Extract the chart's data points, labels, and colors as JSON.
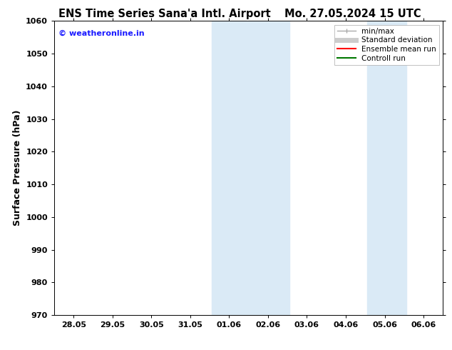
{
  "title_left": "ENS Time Series Sana'a Intl. Airport",
  "title_right": "Mo. 27.05.2024 15 UTC",
  "ylabel": "Surface Pressure (hPa)",
  "ylim": [
    970,
    1060
  ],
  "yticks": [
    970,
    980,
    990,
    1000,
    1010,
    1020,
    1030,
    1040,
    1050,
    1060
  ],
  "xtick_labels": [
    "28.05",
    "29.05",
    "30.05",
    "31.05",
    "01.06",
    "02.06",
    "03.06",
    "04.06",
    "05.06",
    "06.06"
  ],
  "xtick_positions": [
    0,
    1,
    2,
    3,
    4,
    5,
    6,
    7,
    8,
    9
  ],
  "xlim": [
    -0.5,
    9.5
  ],
  "shaded_regions": [
    {
      "x_start": 3.5,
      "x_end": 4.5
    },
    {
      "x_start": 4.5,
      "x_end": 5.5
    },
    {
      "x_start": 7.5,
      "x_end": 8.5
    }
  ],
  "shade_color": "#daeaf6",
  "watermark": "© weatheronline.in",
  "watermark_color": "#1a1aff",
  "legend_entries": [
    {
      "label": "min/max",
      "color": "#aaaaaa",
      "lw": 1.0
    },
    {
      "label": "Standard deviation",
      "color": "#cccccc",
      "lw": 5
    },
    {
      "label": "Ensemble mean run",
      "color": "#ff0000",
      "lw": 1.5
    },
    {
      "label": "Controll run",
      "color": "#007700",
      "lw": 1.5
    }
  ],
  "bg_color": "#ffffff",
  "title_fontsize": 10.5,
  "tick_fontsize": 8,
  "ylabel_fontsize": 9,
  "watermark_fontsize": 8,
  "legend_fontsize": 7.5
}
